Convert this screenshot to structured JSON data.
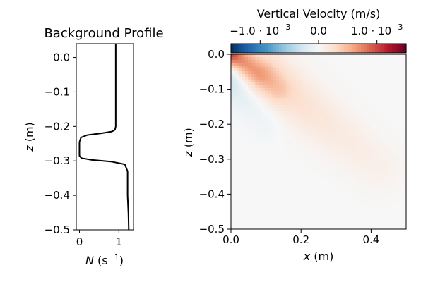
{
  "chart_data": [
    {
      "type": "line",
      "title": "Background Profile",
      "xlabel_var": "N",
      "xlabel_unit": " (s",
      "xlabel_exp": "−1",
      "xlabel_close": ")",
      "ylabel_var": "z",
      "ylabel_unit": " (m)",
      "xlim": [
        -0.08,
        1.37
      ],
      "ylim": [
        -0.5,
        0.04
      ],
      "xticks": [
        {
          "v": 0,
          "label": "0"
        },
        {
          "v": 1,
          "label": "1"
        }
      ],
      "yticks": [
        {
          "v": 0.0,
          "label": "0.0"
        },
        {
          "v": -0.1,
          "label": "−0.1"
        },
        {
          "v": -0.2,
          "label": "−0.2"
        },
        {
          "v": -0.3,
          "label": "−0.3"
        },
        {
          "v": -0.4,
          "label": "−0.4"
        },
        {
          "v": -0.5,
          "label": "−0.5"
        }
      ],
      "series": [
        {
          "color": "#000000",
          "x": [
            0.92,
            0.92,
            0.92,
            0.9,
            0.82,
            0.55,
            0.2,
            0.04,
            0.0,
            0.0,
            0.0,
            0.05,
            0.3,
            0.8,
            1.15,
            1.22,
            1.22,
            1.24,
            1.25
          ],
          "y": [
            0.04,
            -0.1,
            -0.2,
            -0.21,
            -0.215,
            -0.22,
            -0.225,
            -0.232,
            -0.245,
            -0.27,
            -0.285,
            -0.292,
            -0.297,
            -0.302,
            -0.31,
            -0.33,
            -0.4,
            -0.45,
            -0.5
          ]
        }
      ]
    },
    {
      "type": "heatmap",
      "xlabel_var": "x",
      "xlabel_unit": " (m)",
      "ylabel_var": "z",
      "ylabel_unit": " (m)",
      "xlim": [
        0.0,
        0.5
      ],
      "ylim": [
        -0.5,
        0.0
      ],
      "xticks": [
        {
          "v": 0.0,
          "label": "0.0"
        },
        {
          "v": 0.2,
          "label": "0.2"
        },
        {
          "v": 0.4,
          "label": "0.4"
        }
      ],
      "yticks": [
        {
          "v": 0.0,
          "label": "0.0"
        },
        {
          "v": -0.1,
          "label": "−0.1"
        },
        {
          "v": -0.2,
          "label": "−0.2"
        },
        {
          "v": -0.3,
          "label": "−0.3"
        },
        {
          "v": -0.4,
          "label": "−0.4"
        },
        {
          "v": -0.5,
          "label": "−0.5"
        }
      ],
      "colorbar": {
        "label": "Vertical Velocity (m/s)",
        "colormap": "RdBu_r",
        "range": [
          -0.0015,
          0.0015
        ],
        "ticks": [
          {
            "v": -0.001,
            "mantissa": "−1.0 · 10",
            "exp": "−3"
          },
          {
            "v": 0.0,
            "mantissa": "0.0",
            "exp": ""
          },
          {
            "v": 0.001,
            "mantissa": "1.0 · 10",
            "exp": "−3"
          }
        ]
      },
      "features": [
        {
          "sign": 1,
          "amplitude": 0.0011,
          "x0": 0.0,
          "z0": 0.0,
          "x1": 0.13,
          "z1": -0.1,
          "width": 0.028,
          "decay": 0.09
        },
        {
          "sign": 1,
          "amplitude": 0.00035,
          "x0": 0.1,
          "z0": -0.06,
          "x1": 0.42,
          "z1": -0.32,
          "width": 0.05,
          "decay": 0.3
        },
        {
          "sign": -1,
          "amplitude": 0.0004,
          "x0": 0.0,
          "z0": -0.07,
          "x1": 0.1,
          "z1": -0.19,
          "width": 0.035,
          "decay": 0.1
        }
      ]
    }
  ]
}
